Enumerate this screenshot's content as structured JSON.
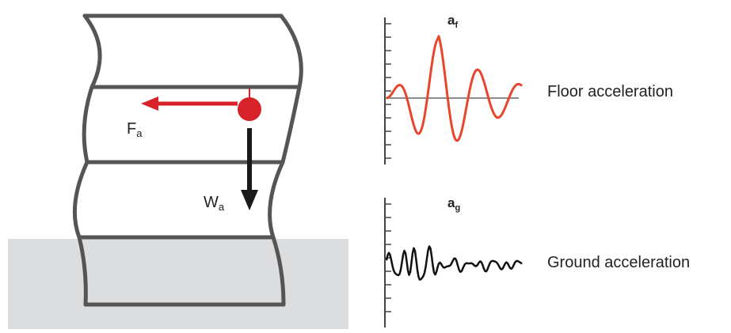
{
  "diagram": {
    "force_label": {
      "main": "F",
      "sub": "a"
    },
    "weight_label": {
      "main": "W",
      "sub": "a"
    },
    "floor_signal_label": {
      "main": "a",
      "sub": "f"
    },
    "ground_signal_label": {
      "main": "a",
      "sub": "g"
    },
    "floor_caption": "Floor acceleration",
    "ground_caption": "Ground acceleration"
  },
  "colors": {
    "building_frame": "#555555",
    "ground": "#dcdddf",
    "force": "#d7222a",
    "weight": "#1a1a1a",
    "floor_signal": "#e8452d",
    "ground_signal": "#111111",
    "axis": "#444444"
  }
}
